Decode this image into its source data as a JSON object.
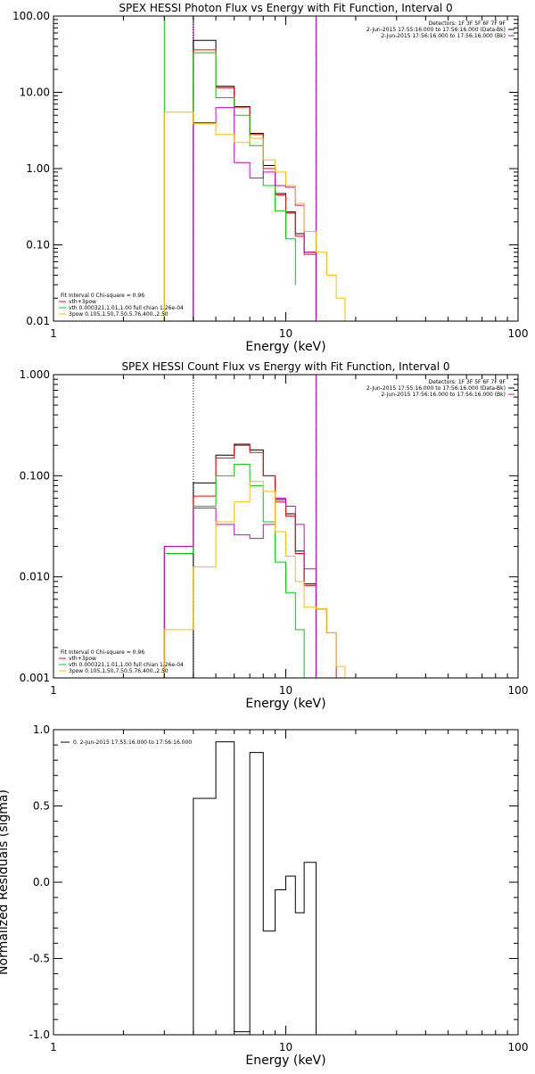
{
  "chart_data": [
    {
      "type": "line",
      "title": "SPEX HESSI Photon Flux vs Energy with Fit Function, Interval 0",
      "xlabel": "Energy (keV)",
      "ylabel": "",
      "x_scale": "log",
      "y_scale": "log",
      "xlim": [
        1,
        100
      ],
      "ylim": [
        0.01,
        100
      ],
      "x_ticks": [
        1,
        10,
        100
      ],
      "x_tick_labels": [
        "1",
        "10",
        "100"
      ],
      "y_ticks": [
        100,
        10,
        1,
        0.1,
        0.01
      ],
      "y_tick_labels": [
        "100.00",
        "10.00",
        "1.00",
        "0.10",
        "0.01"
      ],
      "vlines": [
        {
          "x": 4.0,
          "color": "#00cc00",
          "style": "solid"
        },
        {
          "x": 3.0,
          "color": "#00cc00",
          "style": "solid"
        },
        {
          "x": 4.0,
          "color": "#cc00cc",
          "style": "solid"
        },
        {
          "x": 4.0,
          "color": "#000000",
          "style": "dotted"
        },
        {
          "x": 13.5,
          "color": "#000000",
          "style": "dashed"
        },
        {
          "x": 13.5,
          "color": "#cc00cc",
          "style": "solid"
        }
      ],
      "info_lines": [
        {
          "text": "Detectors: 1F 3F 5F 6F 7F 9F",
          "marker": null
        },
        {
          "text": "2-Jun-2015 17:55:16.000 to 17:56:16.000 (Data-Bk)",
          "marker": "#000000"
        },
        {
          "text": "2-Jun-2015 17:56:16.000 to 17:56:16.000 (Bk)",
          "marker": "#cc00cc"
        }
      ],
      "fit_lines": [
        {
          "text": "Fit Interval 0   Chi-square = 0.96",
          "color": null
        },
        {
          "text": "vth+3pow",
          "color": "#ff0000"
        },
        {
          "text": "vth 0.000321,1.01,1.00  full chian 1.26e-04",
          "color": "#00cc00"
        },
        {
          "text": "3pow 0.105,1.50,7.50,5.76,400.,2.50",
          "color": "#ffbb00"
        }
      ],
      "series": [
        {
          "color": "#000000",
          "edges": [
            4,
            5,
            6,
            7,
            8,
            9,
            10,
            11,
            12,
            13.5
          ],
          "values": [
            48,
            12,
            6.5,
            2.9,
            1.1,
            0.47,
            0.27,
            0.14,
            0.08
          ]
        },
        {
          "color": "#ff0000",
          "edges": [
            4,
            5,
            6,
            7,
            8,
            9,
            10,
            11,
            12,
            13.5
          ],
          "values": [
            36,
            11.5,
            6.4,
            2.8,
            1.0,
            0.45,
            0.26,
            0.13,
            0.075
          ]
        },
        {
          "color": "#00cc00",
          "edges": [
            4,
            5,
            6,
            7,
            8,
            9,
            10,
            11
          ],
          "values": [
            33,
            8.5,
            5.0,
            2.0,
            0.6,
            0.28,
            0.12,
            0.03
          ]
        },
        {
          "color": "#cc00cc",
          "edges": [
            4,
            5,
            6,
            7,
            8,
            9,
            10,
            11,
            12,
            13.5
          ],
          "values": [
            4.0,
            6.3,
            1.2,
            0.75,
            0.9,
            0.6,
            0.57,
            0.33,
            0.08
          ]
        },
        {
          "color": "#ffbb00",
          "edges": [
            3,
            4,
            5,
            6,
            7,
            8,
            9,
            10,
            11,
            12,
            13.5,
            15,
            16.5,
            18
          ],
          "values": [
            5.5,
            3.9,
            2.8,
            2.2,
            2.5,
            1.3,
            0.9,
            0.6,
            0.35,
            0.15,
            0.08,
            0.04,
            0.02
          ]
        }
      ]
    },
    {
      "type": "line",
      "title": "SPEX HESSI Count Flux vs Energy with Fit Function, Interval 0",
      "xlabel": "Energy (keV)",
      "ylabel": "",
      "x_scale": "log",
      "y_scale": "log",
      "xlim": [
        1,
        100
      ],
      "ylim": [
        0.001,
        1
      ],
      "x_ticks": [
        1,
        10,
        100
      ],
      "x_tick_labels": [
        "1",
        "10",
        "100"
      ],
      "y_ticks": [
        1,
        0.1,
        0.01,
        0.001
      ],
      "y_tick_labels": [
        "1.000",
        "0.100",
        "0.010",
        "0.001"
      ],
      "vlines": [
        {
          "x": 4.0,
          "color": "#000000",
          "style": "dotted"
        },
        {
          "x": 13.5,
          "color": "#000000",
          "style": "dashed"
        },
        {
          "x": 13.5,
          "color": "#cc00cc",
          "style": "solid"
        }
      ],
      "info_lines": [
        {
          "text": "Detectors: 1F 3F 5F 6F 7F 9F",
          "marker": null
        },
        {
          "text": "2-Jun-2015 17:55:16.000 to 17:56:16.000 (Data-Bk)",
          "marker": "#000000"
        },
        {
          "text": "2-Jun-2015 17:56:16.000 to 17:56:16.000 (Bk)",
          "marker": "#cc00cc"
        }
      ],
      "fit_lines": [
        {
          "text": "Fit Interval 0   Chi-square = 0.96",
          "color": null
        },
        {
          "text": "vth+3pow",
          "color": "#ff0000"
        },
        {
          "text": "vth 0.000321,1.01,1.00  full chian 1.26e-04",
          "color": "#00cc00"
        },
        {
          "text": "3pow 0.105,1.50,7.50,5.76,400.,2.50",
          "color": "#ffbb00"
        }
      ],
      "series": [
        {
          "color": "#000000",
          "edges": [
            4,
            5,
            6,
            7,
            8,
            9,
            10,
            11,
            12,
            13.5
          ],
          "values": [
            0.085,
            0.16,
            0.205,
            0.18,
            0.1,
            0.058,
            0.042,
            0.018,
            0.0085
          ]
        },
        {
          "color": "#ff0000",
          "edges": [
            3,
            4,
            5,
            6,
            7,
            8,
            9,
            10,
            11,
            12,
            13.5,
            15,
            16.5
          ],
          "values": [
            0.02,
            0.063,
            0.15,
            0.2,
            0.17,
            0.1,
            0.055,
            0.04,
            0.017,
            0.0082,
            0.0048,
            0.0028
          ]
        },
        {
          "color": "#00cc00",
          "edges": [
            3,
            4,
            5,
            6,
            7,
            8,
            9,
            10,
            11,
            12
          ],
          "values": [
            0.017,
            0.05,
            0.1,
            0.13,
            0.08,
            0.035,
            0.014,
            0.007,
            0.003
          ]
        },
        {
          "color": "#cc00cc",
          "edges": [
            3,
            4,
            5,
            6,
            7,
            8,
            9,
            10,
            11,
            12,
            13.5
          ],
          "values": [
            0.02,
            0.048,
            0.033,
            0.026,
            0.024,
            0.033,
            0.06,
            0.05,
            0.033,
            0.012
          ]
        },
        {
          "color": "#ffbb00",
          "edges": [
            3,
            4,
            5,
            6,
            7,
            8,
            9,
            10,
            11,
            12,
            13.5,
            15,
            16.5,
            18
          ],
          "values": [
            0.003,
            0.0125,
            0.035,
            0.055,
            0.088,
            0.07,
            0.028,
            0.016,
            0.009,
            0.005,
            0.0048,
            0.0028,
            0.0013
          ]
        }
      ]
    },
    {
      "type": "line",
      "title": "",
      "xlabel": "Energy (keV)",
      "ylabel": "Normalized Residuals (sigma)",
      "x_scale": "log",
      "y_scale": "linear",
      "xlim": [
        1,
        100
      ],
      "ylim": [
        -1.0,
        1.0
      ],
      "x_ticks": [
        1,
        10,
        100
      ],
      "x_tick_labels": [
        "1",
        "10",
        "100"
      ],
      "y_ticks": [
        1.0,
        0.5,
        0.0,
        -0.5,
        -1.0
      ],
      "y_tick_labels": [
        "1.0",
        "0.5",
        "0.0",
        "-0.5",
        "-1.0"
      ],
      "vlines": [],
      "info_lines": [],
      "fit_lines": [],
      "legend": {
        "text": "0.  2-Jun-2015 17:55:16.000 to 17:56:16.000",
        "color": "#000000"
      },
      "series": [
        {
          "color": "#000000",
          "edges": [
            4,
            5,
            6,
            7,
            8,
            9,
            10,
            11,
            12,
            13.5
          ],
          "values": [
            0.55,
            0.92,
            -0.98,
            0.85,
            -0.32,
            -0.05,
            0.04,
            -0.2,
            0.13
          ]
        }
      ]
    }
  ]
}
